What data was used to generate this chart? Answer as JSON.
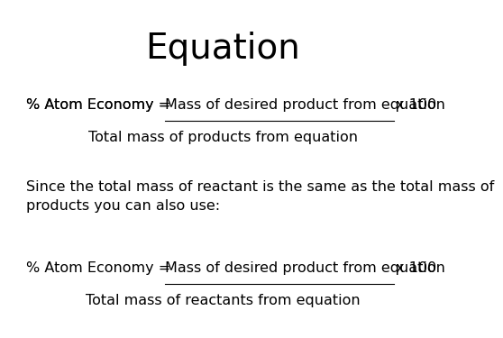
{
  "title": "Equation",
  "title_fontsize": 28,
  "bg_color": "#ffffff",
  "text_color": "#000000",
  "body_fontsize": 11.5,
  "line1_prefix": "% Atom Economy = ",
  "line1_underlined": "Mass of desired product from equation",
  "line1_suffix": " x 100",
  "line2": "Total mass of products from equation",
  "line3": "Since the total mass of reactant is the same as the total mass of\nproducts you can also use:",
  "line4_prefix": "% Atom Economy = ",
  "line4_underlined": "Mass of desired product from equation",
  "line4_suffix": " x 100",
  "line5": "Total mass of reactants from equation"
}
